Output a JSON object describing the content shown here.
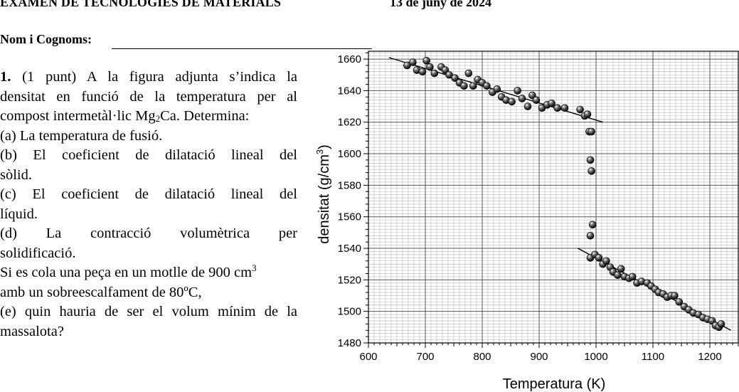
{
  "header": {
    "title": "EXAMEN DE TECNOLOGIES DE MATERIALS",
    "date": "13 de juny de 2024"
  },
  "name_field": {
    "label": "Nom i Cognoms:"
  },
  "question": {
    "number": "1.",
    "line1": " (1 punt) A la figura adjunta s’indica la",
    "line2": "densitat en funció de la temperatura per al",
    "line3a": "compost intermetàl·lic Mg",
    "line3sub": "2",
    "line3b": "Ca. Determina:",
    "a": "(a) La temperatura de fusió.",
    "b1": "(b) El coeficient de dilatació lineal del",
    "b2": "sòlid.",
    "c1": "(c) El coeficient de dilatació lineal del",
    "c2": "líquid.",
    "d1": "(d) La contracció volumètrica per",
    "d2": "solidificació.",
    "e_intro_a": "Si es cola una peça en un motlle de 900 cm",
    "e_intro_sup": "3",
    "e_line2": "amb un sobreescalfament de 80ºC,",
    "e1": "(e) quin hauria de ser el volum mínim de la",
    "e2": "massalota?"
  },
  "chart_data": {
    "type": "scatter",
    "xlabel": "Temperatura (K)",
    "ylabel_main": "densitat (g/cm",
    "ylabel_sup": "3",
    "ylabel_end": ")",
    "xlim": [
      600,
      1250
    ],
    "ylim": [
      1480,
      1665
    ],
    "xticks": [
      600,
      700,
      800,
      900,
      1000,
      1100,
      1200
    ],
    "yticks": [
      1480,
      1500,
      1520,
      1540,
      1560,
      1580,
      1600,
      1620,
      1640,
      1660
    ],
    "grid": true,
    "points": [
      [
        668,
        1656
      ],
      [
        678,
        1658
      ],
      [
        685,
        1653
      ],
      [
        695,
        1652
      ],
      [
        702,
        1659
      ],
      [
        708,
        1655
      ],
      [
        716,
        1651
      ],
      [
        728,
        1655
      ],
      [
        735,
        1653
      ],
      [
        742,
        1650
      ],
      [
        752,
        1648
      ],
      [
        760,
        1645
      ],
      [
        768,
        1643
      ],
      [
        776,
        1651
      ],
      [
        784,
        1643
      ],
      [
        792,
        1647
      ],
      [
        800,
        1645
      ],
      [
        808,
        1643
      ],
      [
        818,
        1639
      ],
      [
        826,
        1641
      ],
      [
        834,
        1636
      ],
      [
        842,
        1634
      ],
      [
        852,
        1633
      ],
      [
        862,
        1640
      ],
      [
        870,
        1635
      ],
      [
        880,
        1630
      ],
      [
        888,
        1637
      ],
      [
        895,
        1634
      ],
      [
        905,
        1629
      ],
      [
        914,
        1631
      ],
      [
        922,
        1632
      ],
      [
        932,
        1629
      ],
      [
        945,
        1629
      ],
      [
        972,
        1628
      ],
      [
        980,
        1624
      ],
      [
        985,
        1625
      ],
      [
        988,
        1614
      ],
      [
        992,
        1614
      ],
      [
        990,
        1596
      ],
      [
        992,
        1589
      ],
      [
        990,
        1548
      ],
      [
        994,
        1555
      ],
      [
        990,
        1534
      ],
      [
        998,
        1536
      ],
      [
        1005,
        1534
      ],
      [
        1012,
        1530
      ],
      [
        1018,
        1532
      ],
      [
        1025,
        1528
      ],
      [
        1030,
        1525
      ],
      [
        1038,
        1523
      ],
      [
        1044,
        1527
      ],
      [
        1050,
        1522
      ],
      [
        1058,
        1521
      ],
      [
        1064,
        1522
      ],
      [
        1072,
        1518
      ],
      [
        1080,
        1519
      ],
      [
        1090,
        1518
      ],
      [
        1097,
        1516
      ],
      [
        1104,
        1514
      ],
      [
        1110,
        1512
      ],
      [
        1118,
        1511
      ],
      [
        1125,
        1509
      ],
      [
        1132,
        1510
      ],
      [
        1138,
        1510
      ],
      [
        1146,
        1506
      ],
      [
        1155,
        1503
      ],
      [
        1163,
        1501
      ],
      [
        1171,
        1499
      ],
      [
        1180,
        1498
      ],
      [
        1188,
        1496
      ],
      [
        1196,
        1495
      ],
      [
        1204,
        1494
      ],
      [
        1210,
        1491
      ],
      [
        1216,
        1490
      ],
      [
        1220,
        1492
      ]
    ],
    "fit_lines": [
      [
        [
          636,
          1661
        ],
        [
          1012,
          1620
        ]
      ],
      [
        [
          968,
          1540
        ],
        [
          1237,
          1488
        ]
      ]
    ]
  }
}
